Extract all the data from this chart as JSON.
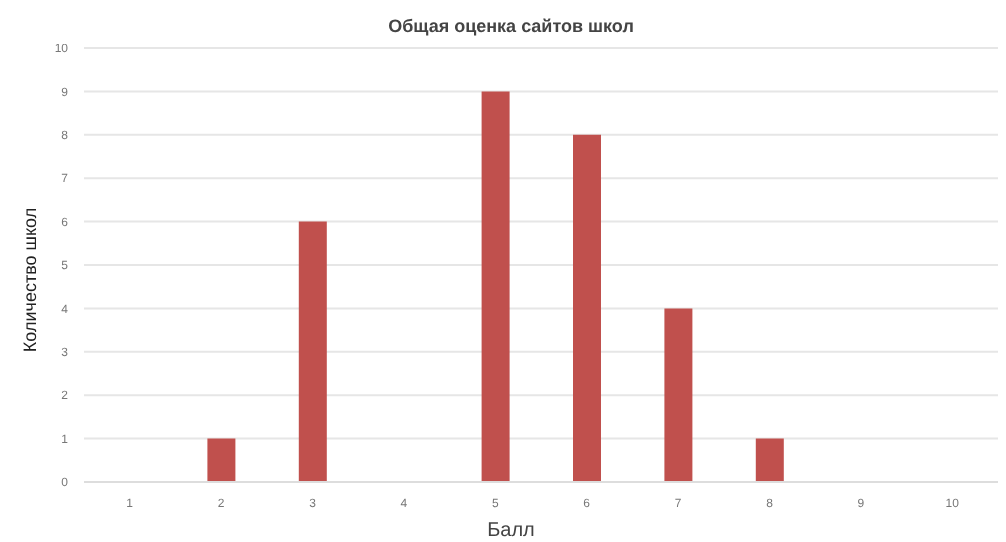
{
  "chart_data": {
    "type": "bar",
    "title": "Общая оценка сайтов школ",
    "xlabel": "Балл",
    "ylabel": "Количество школ",
    "categories": [
      "1",
      "2",
      "3",
      "4",
      "5",
      "6",
      "7",
      "8",
      "9",
      "10"
    ],
    "values": [
      0,
      1,
      6,
      0,
      9,
      8,
      4,
      1,
      0,
      0
    ],
    "color": "#c0504d",
    "ylim": [
      0,
      10
    ],
    "yticks": [
      0,
      1,
      2,
      3,
      4,
      5,
      6,
      7,
      8,
      9,
      10
    ],
    "grid": "y"
  }
}
